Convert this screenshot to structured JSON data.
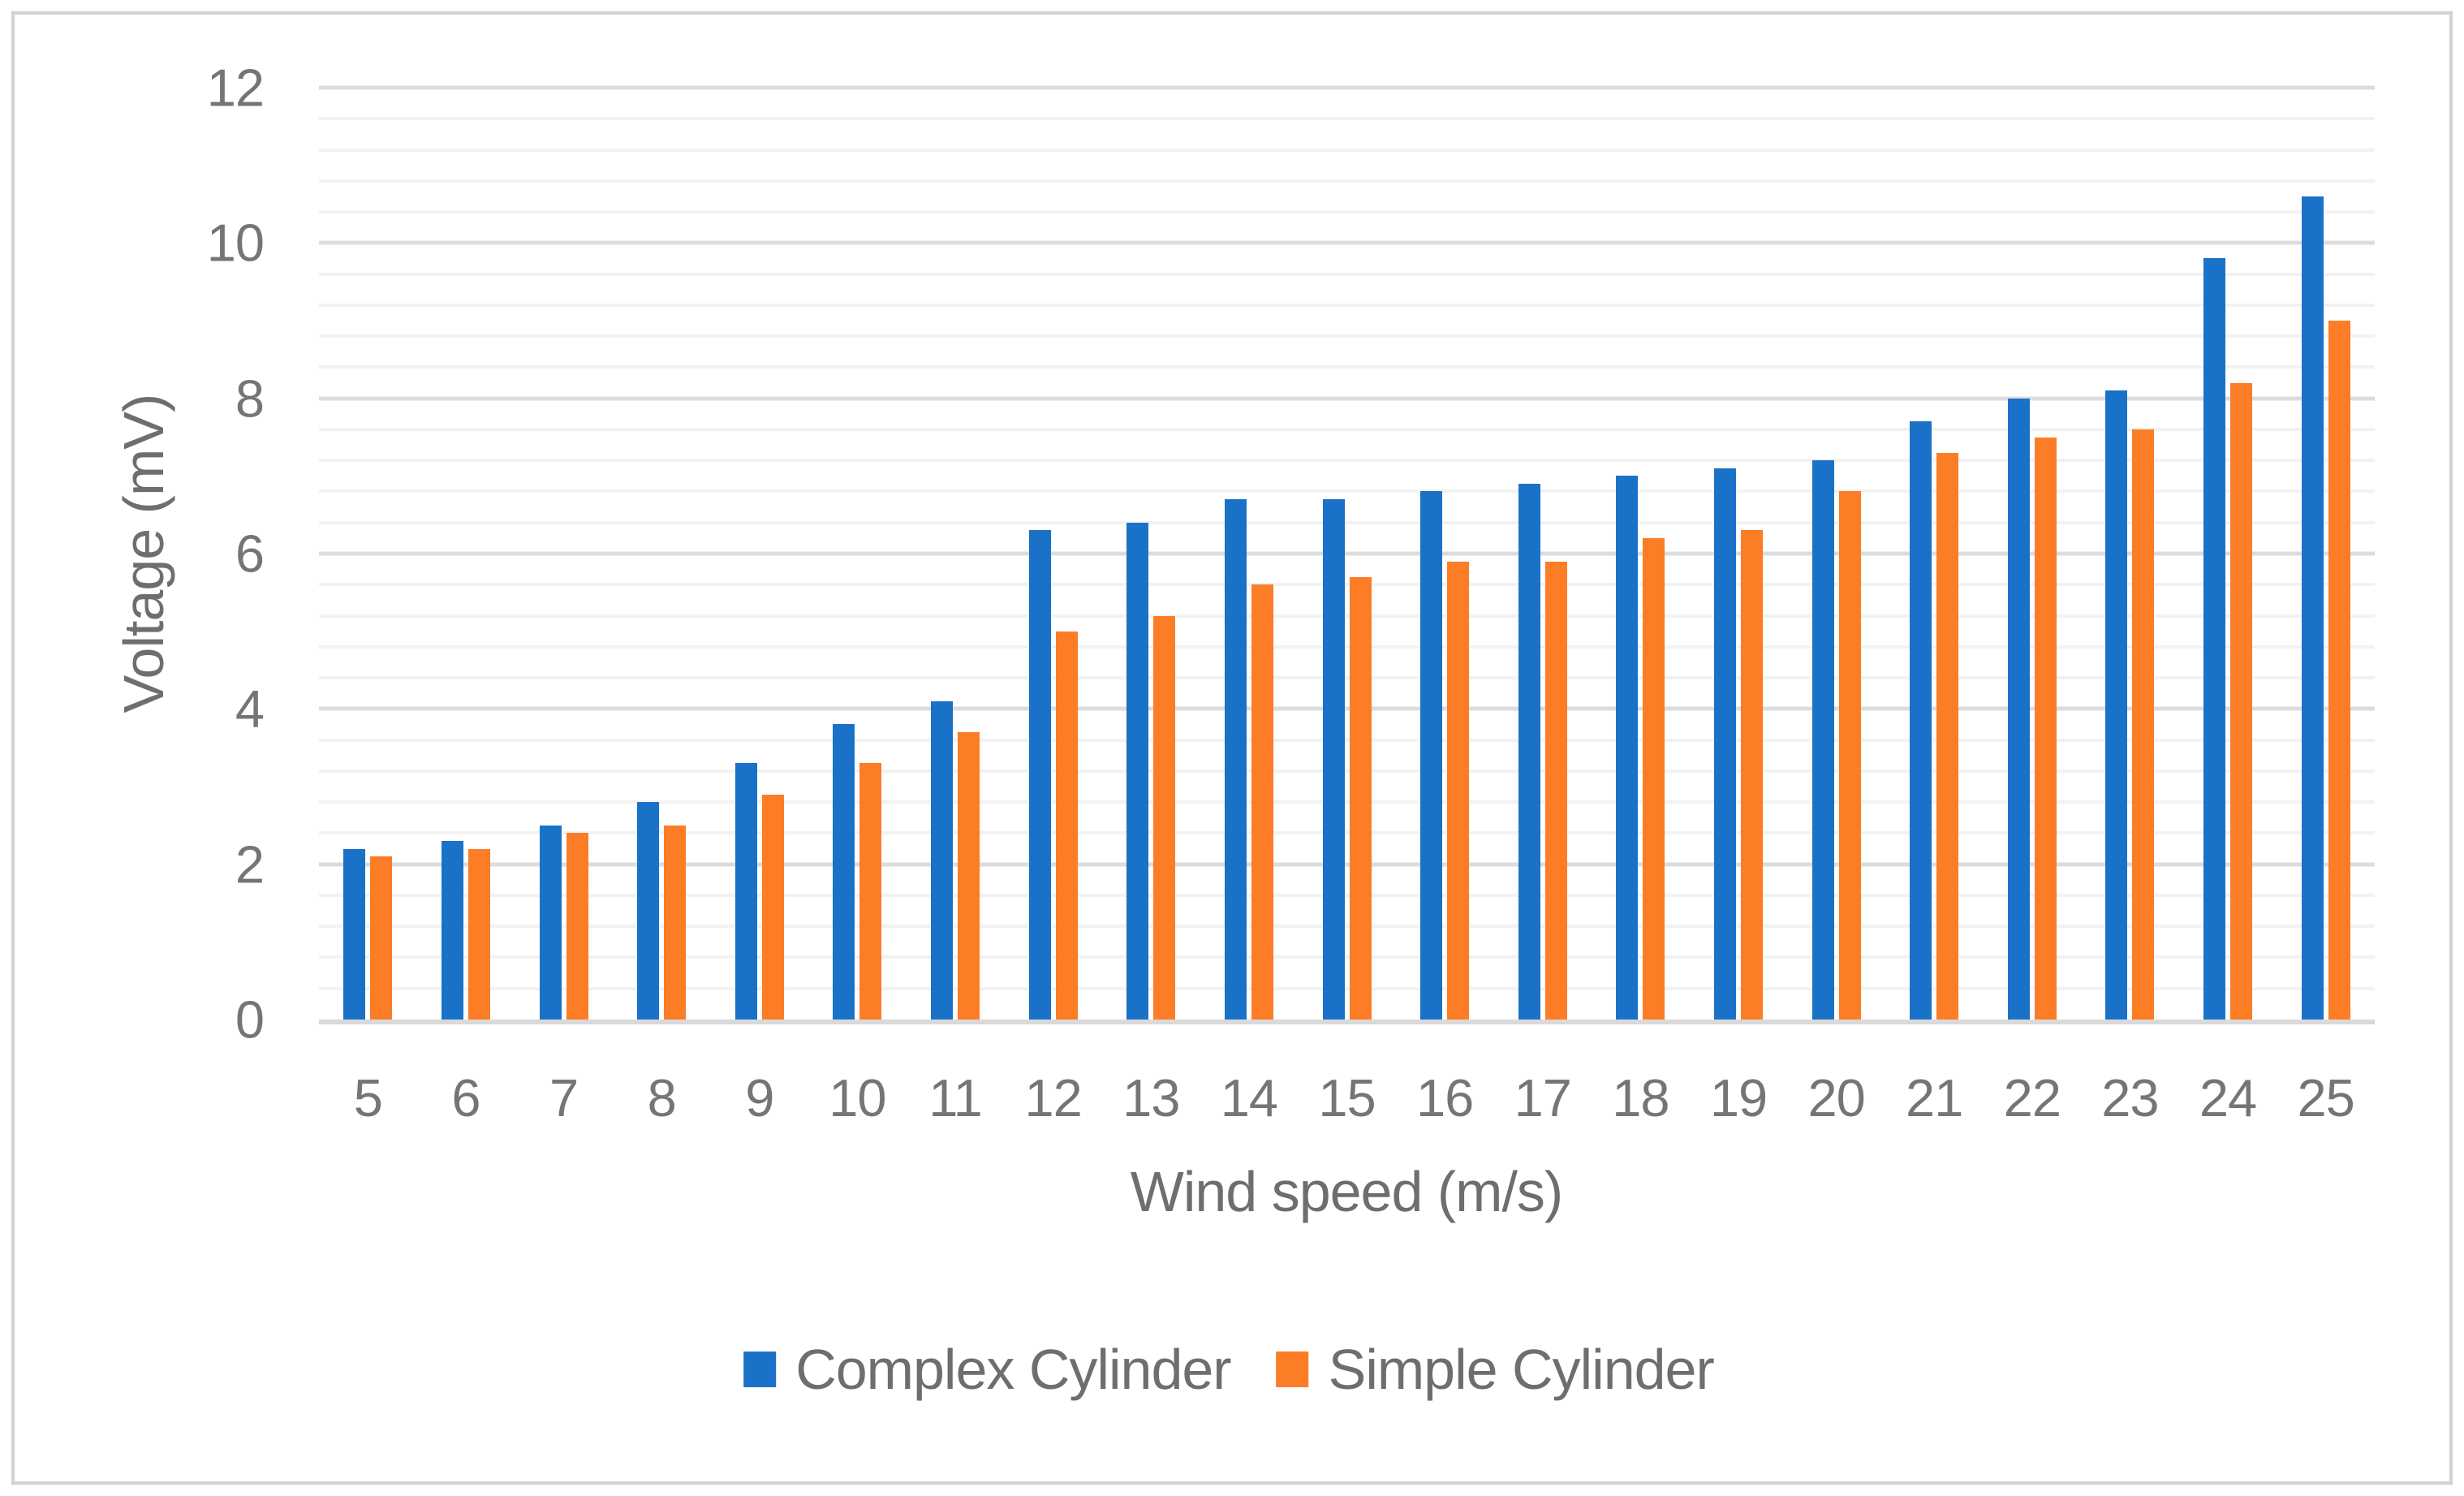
{
  "page": {
    "background": "#ffffff",
    "border_color": "#d2d2d2",
    "text_color": "#757575"
  },
  "chart_data": {
    "type": "bar",
    "title": "",
    "xlabel": "Wind speed (m/s)",
    "ylabel": "Voltage (mV)",
    "categories": [
      "5",
      "6",
      "7",
      "8",
      "9",
      "10",
      "11",
      "12",
      "13",
      "14",
      "15",
      "16",
      "17",
      "18",
      "19",
      "20",
      "21",
      "22",
      "23",
      "24",
      "25"
    ],
    "series": [
      {
        "name": "Complex Cylinder",
        "color": "#1a72c8",
        "values": [
          2.2,
          2.3,
          2.5,
          2.8,
          3.3,
          3.8,
          4.1,
          6.3,
          6.4,
          6.7,
          6.7,
          6.8,
          6.9,
          7.0,
          7.1,
          7.2,
          7.7,
          8.0,
          8.1,
          9.8,
          10.6
        ]
      },
      {
        "name": "Simple Cylinder",
        "color": "#fc7d26",
        "values": [
          2.1,
          2.2,
          2.4,
          2.5,
          2.9,
          3.3,
          3.7,
          5.0,
          5.2,
          5.6,
          5.7,
          5.9,
          5.9,
          6.2,
          6.3,
          6.8,
          7.3,
          7.5,
          7.6,
          8.2,
          9.0
        ]
      }
    ],
    "ylim": [
      0,
      12
    ],
    "y_major_ticks": [
      "0",
      "2",
      "4",
      "6",
      "8",
      "10",
      "12"
    ],
    "y_major_step": 2,
    "y_minor_step": 0.4,
    "grid": {
      "major_color": "#dcdcdc",
      "minor_color": "#f2f2f2",
      "axis_color": "#d9d9d9",
      "minor_on": true
    },
    "legend_position": "bottom-center"
  }
}
